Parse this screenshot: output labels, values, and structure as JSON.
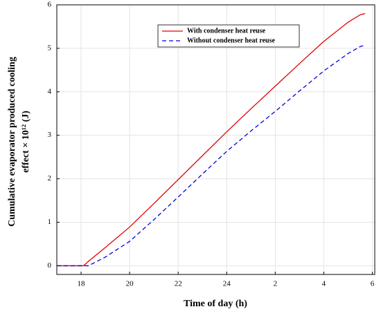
{
  "chart_data": {
    "type": "line",
    "xlabel": "Time of day (h)",
    "ylabel": [
      "Cumulative evaporator produced cooling",
      "effect × 10¹² (J)"
    ],
    "x": [
      17,
      18,
      18.1,
      18.3,
      19,
      20,
      21,
      22,
      23,
      24,
      25,
      26,
      27,
      28,
      29,
      29.5,
      29.7
    ],
    "series": [
      {
        "name": "With condenser heat reuse",
        "color": "#e00000",
        "dash": "none",
        "values": [
          0,
          0,
          0,
          0.1,
          0.42,
          0.89,
          1.43,
          1.98,
          2.53,
          3.08,
          3.61,
          4.13,
          4.65,
          5.16,
          5.6,
          5.77,
          5.8
        ]
      },
      {
        "name": "Without condenser heat reuse",
        "color": "#0000dd",
        "dash": "6,4",
        "values": [
          0,
          0,
          0,
          0,
          0.2,
          0.56,
          1.06,
          1.58,
          2.11,
          2.63,
          3.1,
          3.55,
          4.02,
          4.48,
          4.88,
          5.04,
          5.07
        ]
      }
    ],
    "xlim": [
      17,
      30.1
    ],
    "xticks": [
      18,
      20,
      22,
      24,
      {
        "value": 26,
        "label": "2"
      },
      {
        "value": 28,
        "label": "4"
      },
      {
        "value": 30,
        "label": "6"
      }
    ],
    "ylim": [
      -0.2,
      6
    ],
    "yticks": [
      0,
      1,
      2,
      3,
      4,
      5,
      6
    ],
    "grid": true,
    "legend": "upper center"
  }
}
